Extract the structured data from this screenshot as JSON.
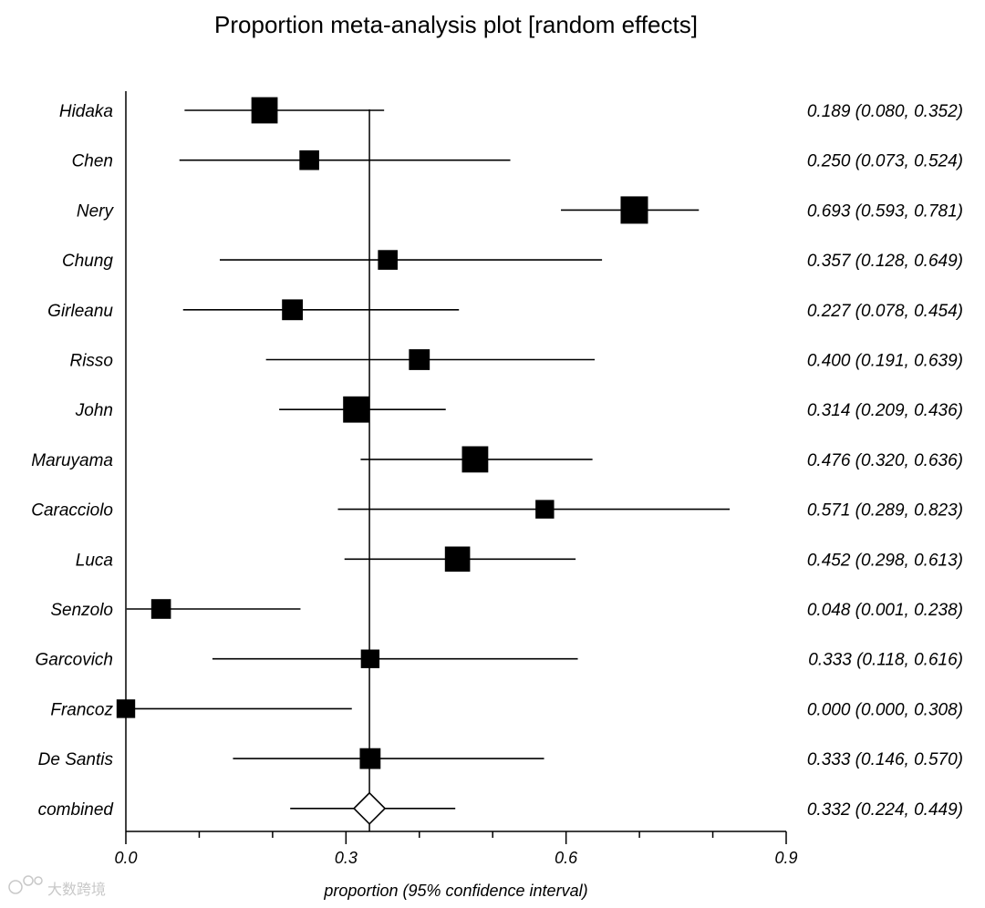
{
  "chart_data": {
    "type": "forest",
    "title": "Proportion meta-analysis plot [random effects]",
    "xlabel": "proportion (95% confidence interval)",
    "xlim": [
      0.0,
      0.9
    ],
    "xticks": [
      {
        "value": 0.0,
        "label": "0.0"
      },
      {
        "value": 0.3,
        "label": "0.3"
      },
      {
        "value": 0.6,
        "label": "0.6"
      },
      {
        "value": 0.9,
        "label": "0.9"
      }
    ],
    "minor_ticks": [
      0.1,
      0.2,
      0.4,
      0.5,
      0.7,
      0.8
    ],
    "reference_line": 0.332,
    "studies": [
      {
        "name": "Hidaka",
        "est": 0.189,
        "lo": 0.08,
        "hi": 0.352,
        "weight": 1.2,
        "label": "0.189 (0.080, 0.352)"
      },
      {
        "name": "Chen",
        "est": 0.25,
        "lo": 0.073,
        "hi": 0.524,
        "weight": 0.9,
        "label": "0.250 (0.073, 0.524)"
      },
      {
        "name": "Nery",
        "est": 0.693,
        "lo": 0.593,
        "hi": 0.781,
        "weight": 1.25,
        "label": "0.693 (0.593, 0.781)"
      },
      {
        "name": "Chung",
        "est": 0.357,
        "lo": 0.128,
        "hi": 0.649,
        "weight": 0.9,
        "label": "0.357 (0.128, 0.649)"
      },
      {
        "name": "Girleanu",
        "est": 0.227,
        "lo": 0.078,
        "hi": 0.454,
        "weight": 0.95,
        "label": "0.227 (0.078, 0.454)"
      },
      {
        "name": "Risso",
        "est": 0.4,
        "lo": 0.191,
        "hi": 0.639,
        "weight": 0.95,
        "label": "0.400 (0.191, 0.639)"
      },
      {
        "name": "John",
        "est": 0.314,
        "lo": 0.209,
        "hi": 0.436,
        "weight": 1.2,
        "label": "0.314 (0.209, 0.436)"
      },
      {
        "name": "Maruyama",
        "est": 0.476,
        "lo": 0.32,
        "hi": 0.636,
        "weight": 1.2,
        "label": "0.476 (0.320, 0.636)"
      },
      {
        "name": "Caracciolo",
        "est": 0.571,
        "lo": 0.289,
        "hi": 0.823,
        "weight": 0.85,
        "label": "0.571 (0.289, 0.823)"
      },
      {
        "name": "Luca",
        "est": 0.452,
        "lo": 0.298,
        "hi": 0.613,
        "weight": 1.15,
        "label": "0.452 (0.298, 0.613)"
      },
      {
        "name": "Senzolo",
        "est": 0.048,
        "lo": 0.001,
        "hi": 0.238,
        "weight": 0.9,
        "label": "0.048 (0.001, 0.238)"
      },
      {
        "name": "Garcovich",
        "est": 0.333,
        "lo": 0.118,
        "hi": 0.616,
        "weight": 0.85,
        "label": "0.333 (0.118, 0.616)"
      },
      {
        "name": "Francoz",
        "est": 0.0,
        "lo": 0.0,
        "hi": 0.308,
        "weight": 0.85,
        "label": "0.000 (0.000, 0.308)"
      },
      {
        "name": "De Santis",
        "est": 0.333,
        "lo": 0.146,
        "hi": 0.57,
        "weight": 0.95,
        "label": "0.333 (0.146, 0.570)"
      }
    ],
    "combined": {
      "name": "combined",
      "est": 0.332,
      "lo": 0.224,
      "hi": 0.449,
      "label": "0.332 (0.224, 0.449)"
    }
  },
  "watermark": {
    "text": "大数跨境",
    "icon": "watermark-logo-icon"
  }
}
